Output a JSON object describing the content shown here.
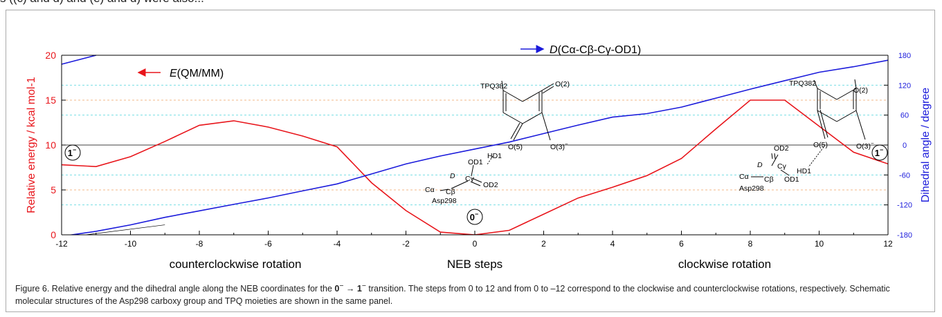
{
  "header_fragment": "s ((c) and d) and (e) and d) were also...",
  "chart_data": {
    "type": "line",
    "x": [
      -12,
      -11,
      -10,
      -9,
      -8,
      -7,
      -6,
      -5,
      -4,
      -3,
      -2,
      -1,
      0,
      1,
      2,
      3,
      4,
      5,
      6,
      7,
      8,
      9,
      10,
      11,
      12
    ],
    "series": [
      {
        "name": "E(QM/MM)",
        "axis": "left",
        "color": "#e8151b",
        "values": [
          7.8,
          7.6,
          8.7,
          10.4,
          12.2,
          12.7,
          12.0,
          11.0,
          9.8,
          5.8,
          2.7,
          0.3,
          0.0,
          0.5,
          2.3,
          4.1,
          5.3,
          6.6,
          8.5,
          11.8,
          15.0,
          15.0,
          12.1,
          9.2,
          7.9
        ]
      },
      {
        "name": "D(Cα-Cβ-Cγ-OD1)",
        "axis": "right",
        "color": "#1a1adb",
        "values": [
          -183,
          -173,
          -160,
          -145,
          -132,
          -119,
          -106,
          -92,
          -78,
          -58,
          -38,
          -22,
          -8,
          6,
          23,
          40,
          56,
          63,
          76,
          94,
          112,
          129,
          146,
          157,
          170
        ]
      }
    ],
    "overlay_line": {
      "color": "#1a1adb",
      "points": [
        [
          -12,
          162
        ],
        [
          -11,
          180
        ]
      ]
    },
    "x_ticks": [
      "-12",
      "-10",
      "-8",
      "-6",
      "-4",
      "-2",
      "0",
      "2",
      "4",
      "6",
      "8",
      "10",
      "12"
    ],
    "y_left_ticks": [
      "0",
      "5",
      "10",
      "15",
      "20"
    ],
    "y_right_ticks": [
      "-180",
      "-120",
      "-60",
      "0",
      "60",
      "120",
      "180"
    ],
    "xlim": [
      -12,
      12
    ],
    "ylim_left": [
      0,
      20
    ],
    "ylim_right": [
      -180,
      180
    ],
    "ylabel_left": "Relative energy / kcal mol-1",
    "ylabel_right": "Dihedral angle / degree",
    "xlabel_left": "counterclockwise rotation",
    "xlabel_center": "NEB steps",
    "xlabel_right": "clockwise rotation",
    "legend": {
      "energy_prefix": "E",
      "energy_suffix": "(QM/MM)",
      "dihedral_prefix": "D",
      "dihedral_suffix": "(Cα-Cβ-Cγ-OD1)"
    },
    "grid": {
      "orange_dashed_left": [
        5,
        15
      ],
      "cyan_dashed_right": [
        -120,
        -60,
        60,
        120
      ]
    },
    "colors": {
      "energy": "#e8151b",
      "dihedral": "#1a1adb",
      "orange_grid": "#f0a060",
      "cyan_grid": "#60d8e0"
    },
    "state_labels": {
      "left": "1",
      "center": "0",
      "right": "1",
      "charge": "−"
    },
    "molecule_labels": {
      "tpq": "TPQ382",
      "o2": "O(2)",
      "o5": "O(5)",
      "o3": "O(3)",
      "o3_charge": "−",
      "hd1": "HD1",
      "od1": "OD1",
      "od2": "OD2",
      "ca": "Cα",
      "cb": "Cβ",
      "cg": "Cγ",
      "d": "D",
      "asp": "Asp298"
    }
  },
  "caption": {
    "part1": "Figure 6. Relative energy and the dihedral angle along the NEB coordinates for the ",
    "from_state": "0",
    "arrow": " → ",
    "to_state": "1",
    "charge": "−",
    "part2": " transition. The steps from 0 to 12 and from 0 to –12 correspond to the clockwise and counterclockwise rotations, respectively. Schematic molecular structures of the Asp298 carboxy group and TPQ moieties are shown in the same panel."
  }
}
